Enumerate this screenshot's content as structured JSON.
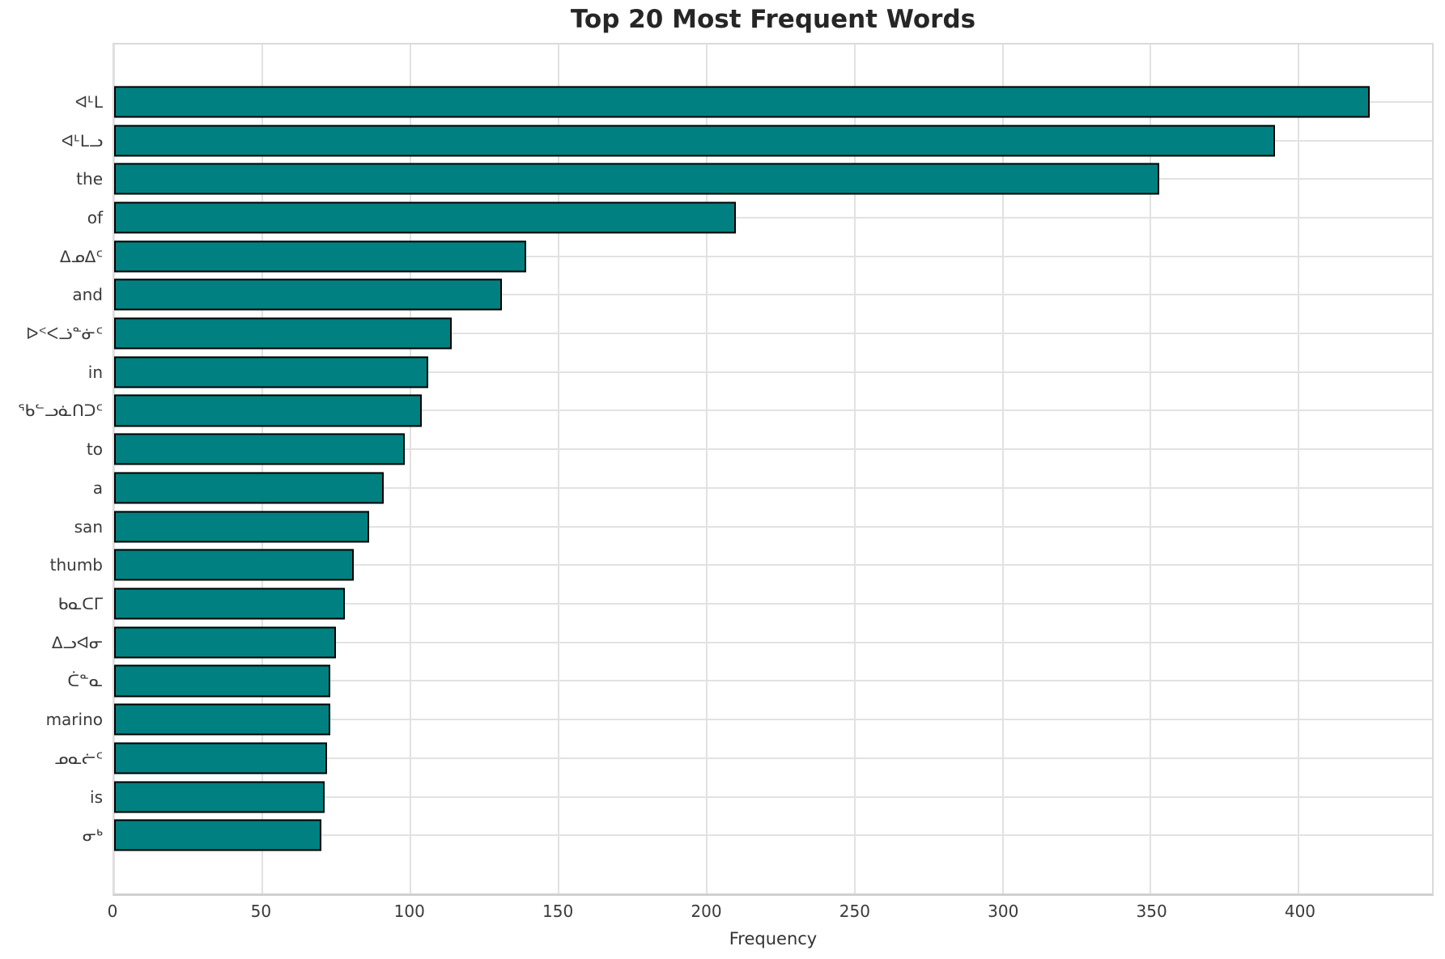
{
  "chart_data": {
    "type": "bar",
    "orientation": "horizontal",
    "title": "Top 20 Most Frequent Words",
    "xlabel": "Frequency",
    "ylabel": "",
    "categories": [
      "ᐊᒻᒪ",
      "ᐊᒻᒪᓗ",
      "the",
      "of",
      "ᐃᓄᐃᑦ",
      "and",
      "ᐅᑉᐸᓘᓐᓃᑦ",
      "in",
      "ᖃᓪᓗᓈᑎᑐᑦ",
      "to",
      "a",
      "san",
      "thumb",
      "ᑲᓇᑕᒥ",
      "ᐃᓗᐊᓂ",
      "ᑖᓐᓇ",
      "marino",
      "ᓄᓇᓖᑦ",
      "is",
      "ᓂᒃ"
    ],
    "values": [
      424,
      392,
      353,
      210,
      139,
      131,
      114,
      106,
      104,
      98,
      91,
      86,
      81,
      78,
      75,
      73,
      73,
      72,
      71,
      70
    ],
    "xlim": [
      0,
      445
    ],
    "xticks": [
      0,
      50,
      100,
      150,
      200,
      250,
      300,
      350,
      400
    ],
    "grid": true,
    "legend": "none",
    "colors": {
      "bar_fill": "#008080",
      "bar_edge": "#000000",
      "grid_line": "#e2e2e2",
      "title_text": "#262626",
      "tick_text": "#3a3a3a",
      "background": "#ffffff"
    }
  }
}
